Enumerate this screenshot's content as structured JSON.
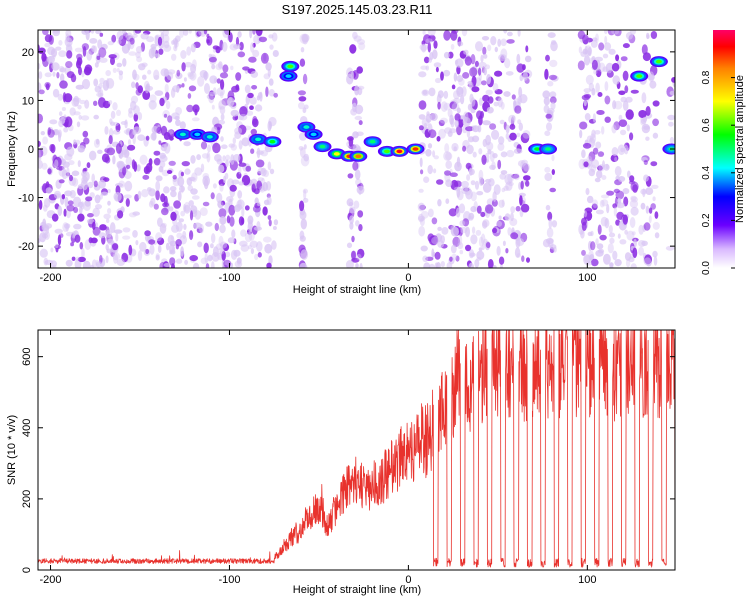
{
  "title": "S197.2025.145.03.23.R11",
  "colors": {
    "snr_line": "#e8322d",
    "spectrum_strong": "#8a2be2",
    "spectrum_weak": "#d8c4f4"
  },
  "chart_data": [
    {
      "type": "heatmap",
      "title": "S197.2025.145.03.23.R11",
      "xlabel": "Height of straight line (km)",
      "ylabel": "Frequency (Hz)",
      "xlim": [
        -207,
        149
      ],
      "ylim": [
        -24.5,
        24.5
      ],
      "xticks": [
        -200,
        -100,
        0,
        100
      ],
      "yticks": [
        20,
        10,
        0,
        -10,
        -20
      ],
      "xtick_labels": [
        "-200",
        "-100",
        "0",
        "100"
      ],
      "ytick_labels": [
        "20",
        "10",
        "0",
        "-10",
        "-20"
      ],
      "colorbar": {
        "label": "Normalized spectral amplitude",
        "range": [
          0.0,
          1.0
        ],
        "ticks": [
          0.0,
          0.2,
          0.4,
          0.6,
          0.8
        ],
        "tick_labels": [
          "0.0",
          "0.2",
          "0.4",
          "0.6",
          "0.8"
        ],
        "colormap": "rainbow"
      },
      "blank_bands_km": [
        [
          -74,
          -60
        ],
        [
          -57,
          -33
        ],
        [
          -26,
          7
        ],
        [
          67,
          77
        ],
        [
          82,
          96
        ],
        [
          127,
          130
        ],
        [
          139,
          146
        ]
      ],
      "noise_level": 0.12,
      "features": [
        {
          "x": -126,
          "y": 3,
          "amplitude": 0.45
        },
        {
          "x": -118,
          "y": 3,
          "amplitude": 0.4
        },
        {
          "x": -111,
          "y": 2.5,
          "amplitude": 0.45
        },
        {
          "x": -84,
          "y": 2,
          "amplitude": 0.45
        },
        {
          "x": -76,
          "y": 1.5,
          "amplitude": 0.55
        },
        {
          "x": -66,
          "y": 17,
          "amplitude": 0.6
        },
        {
          "x": -67,
          "y": 15,
          "amplitude": 0.4
        },
        {
          "x": -57,
          "y": 4.5,
          "amplitude": 0.45
        },
        {
          "x": -53,
          "y": 3,
          "amplitude": 0.4
        },
        {
          "x": -48,
          "y": 0.5,
          "amplitude": 0.5
        },
        {
          "x": -40,
          "y": -1,
          "amplitude": 0.7
        },
        {
          "x": -33,
          "y": -1.5,
          "amplitude": 0.9
        },
        {
          "x": -28,
          "y": -1.5,
          "amplitude": 0.85
        },
        {
          "x": -20,
          "y": 1.5,
          "amplitude": 0.5
        },
        {
          "x": -12,
          "y": -0.5,
          "amplitude": 0.6
        },
        {
          "x": -5,
          "y": -0.5,
          "amplitude": 0.95
        },
        {
          "x": 4,
          "y": 0,
          "amplitude": 0.9
        },
        {
          "x": 72,
          "y": 0,
          "amplitude": 0.55
        },
        {
          "x": 78,
          "y": 0,
          "amplitude": 0.5
        },
        {
          "x": 129,
          "y": 15,
          "amplitude": 0.6
        },
        {
          "x": 140,
          "y": 18,
          "amplitude": 0.6
        },
        {
          "x": 147,
          "y": 0,
          "amplitude": 0.5
        }
      ]
    },
    {
      "type": "line",
      "xlabel": "Height of straight line (km)",
      "ylabel": "SNR (10 * v/v)",
      "xlim": [
        -207,
        149
      ],
      "ylim": [
        0,
        675
      ],
      "xticks": [
        -200,
        -100,
        0,
        100
      ],
      "yticks": [
        0,
        200,
        400,
        600
      ],
      "xtick_labels": [
        "-200",
        "-100",
        "0",
        "100"
      ],
      "ytick_labels": [
        "0",
        "200",
        "400",
        "600"
      ],
      "series": [
        {
          "x": [
            -207,
            -200,
            -180,
            -160,
            -140,
            -120,
            -100,
            -85,
            -78,
            -75,
            -72,
            -70,
            -66,
            -63,
            -60,
            -58,
            -55,
            -52,
            -48,
            -45,
            -42,
            -38,
            -35,
            -30,
            -28,
            -25,
            -20,
            -15,
            -10,
            -5,
            0,
            3,
            6,
            10,
            12,
            15,
            18,
            20,
            24,
            28,
            32,
            36,
            40,
            44,
            48,
            52,
            56,
            60,
            64,
            68,
            72,
            76,
            80,
            84,
            88,
            92,
            96,
            100,
            104,
            108,
            112,
            116,
            120,
            124,
            128,
            132,
            136,
            140,
            144,
            149
          ],
          "values": [
            20,
            18,
            20,
            19,
            21,
            18,
            20,
            22,
            25,
            35,
            50,
            60,
            90,
            100,
            115,
            140,
            150,
            180,
            170,
            120,
            160,
            200,
            240,
            260,
            250,
            235,
            240,
            260,
            290,
            320,
            360,
            340,
            380,
            370,
            390,
            420,
            450,
            470,
            500,
            530,
            520,
            560,
            580,
            590,
            610,
            620,
            580,
            600,
            590,
            570,
            590,
            585,
            595,
            600,
            610,
            605,
            600,
            590,
            600,
            610,
            600,
            595,
            605,
            600,
            595,
            590,
            600,
            610,
            620,
            600
          ],
          "baseline": 18,
          "drop_start_km": 14,
          "drop_period_km": 7.5,
          "drop_width_km": 2.6
        }
      ]
    }
  ]
}
